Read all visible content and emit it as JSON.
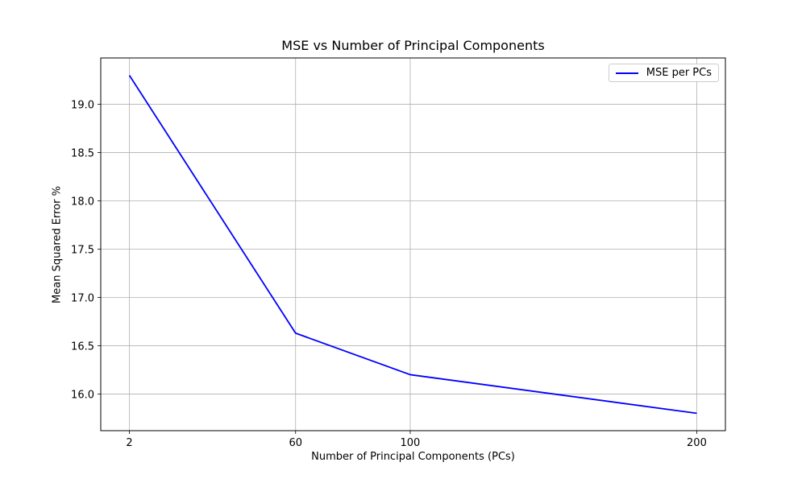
{
  "chart_data": {
    "type": "line",
    "title": "MSE vs Number of Principal Components",
    "xlabel": "Number of Principal Components (PCs)",
    "ylabel": "Mean Squared Error %",
    "x": [
      2,
      60,
      100,
      200
    ],
    "x_ticks": [
      "2",
      "60",
      "100",
      "200"
    ],
    "series": [
      {
        "name": "MSE per PCs",
        "color": "#0000ff",
        "values": [
          19.3,
          16.63,
          16.2,
          15.8
        ]
      }
    ],
    "xlim": [
      -8,
      210
    ],
    "ylim": [
      15.62,
      19.48
    ],
    "y_ticks": [
      "16.0",
      "16.5",
      "17.0",
      "17.5",
      "18.0",
      "18.5",
      "19.0"
    ],
    "grid": true,
    "legend_position": "top-right"
  }
}
